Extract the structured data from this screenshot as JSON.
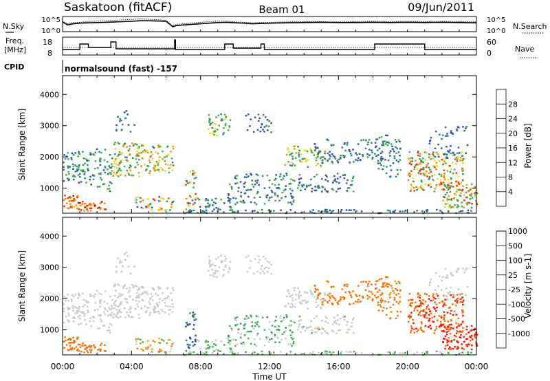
{
  "header": {
    "station": "Saskatoon (fitACF)",
    "beam": "Beam 01",
    "date": "09/Jun/2011"
  },
  "noise_panel": {
    "left_label": "N.Sky",
    "right_label": "N.Search",
    "left_ticks": [
      "10^5",
      "10^0"
    ],
    "right_ticks": [
      "10^5",
      "10^0"
    ]
  },
  "freq_panel": {
    "left_label_line1": "Freq.",
    "left_label_line2": "[MHz]",
    "right_label": "Nave",
    "left_ticks": [
      18,
      8
    ],
    "right_ticks": [
      60,
      0
    ]
  },
  "cpid": {
    "label": "CPID",
    "text": "normalsound (fast) -157"
  },
  "chart_data": [
    {
      "type": "line",
      "panel": "noise",
      "x_unit": "hours UT",
      "y_scale": "log",
      "series": [
        {
          "style": "solid",
          "x": [
            0,
            0.3,
            0.6,
            1.0,
            1.5,
            2.0,
            2.5,
            3.0,
            3.5,
            4.0,
            4.5,
            5.0,
            5.5,
            6.0,
            6.4,
            6.6,
            7.0,
            7.5,
            8.0,
            8.5,
            9.0,
            9.5,
            10.0,
            10.5,
            11.0,
            11.5,
            12.0,
            13.0,
            14.0,
            15.0,
            16.0,
            17.0,
            18.0,
            19.0,
            20.0,
            21.0,
            22.0,
            23.0,
            24.0
          ],
          "y": [
            3.2,
            2.2,
            2.6,
            2.8,
            2.9,
            3.0,
            3.1,
            3.2,
            3.3,
            3.4,
            3.6,
            3.6,
            3.5,
            3.4,
            1.6,
            2.0,
            2.2,
            2.4,
            2.6,
            2.8,
            3.0,
            3.1,
            2.9,
            2.8,
            2.6,
            2.7,
            2.8,
            2.9,
            3.0,
            3.1,
            3.0,
            3.0,
            3.1,
            3.0,
            3.1,
            3.0,
            3.1,
            3.0,
            2.9
          ]
        },
        {
          "style": "dotted",
          "x": [
            0,
            0.3,
            0.6,
            1.0,
            1.5,
            2.0,
            2.5,
            3.0,
            3.5,
            4.0,
            4.5,
            5.0,
            5.5,
            6.0,
            6.4,
            6.6,
            7.0,
            7.5,
            8.0,
            8.5,
            9.0,
            9.5,
            10.0,
            10.5,
            11.0,
            11.5,
            12.0,
            13.0,
            14.0,
            15.0,
            16.0,
            17.0,
            18.0,
            19.0,
            20.0,
            21.0,
            22.0,
            23.0,
            24.0
          ],
          "y": [
            3.5,
            2.6,
            3.0,
            3.1,
            3.3,
            3.5,
            3.6,
            3.7,
            3.9,
            4.0,
            4.2,
            4.1,
            3.9,
            3.7,
            1.9,
            2.4,
            2.6,
            2.8,
            3.1,
            3.3,
            3.5,
            3.5,
            3.2,
            3.1,
            2.9,
            3.0,
            3.1,
            3.2,
            3.3,
            3.3,
            3.2,
            3.3,
            3.4,
            3.3,
            3.4,
            3.3,
            3.4,
            3.3,
            3.2
          ]
        }
      ]
    },
    {
      "type": "line",
      "panel": "frequency",
      "x_unit": "hours UT",
      "ylim": [
        8,
        18
      ],
      "series": [
        {
          "name": "Freq.",
          "style": "solid",
          "step_x": [
            0,
            1.0,
            1.5,
            2.8,
            3.1,
            6.5,
            6.55,
            9.4,
            9.9,
            11.5,
            11.7,
            18.1,
            21.0,
            24.0
          ],
          "step_y": [
            10.5,
            14.5,
            12.0,
            16.0,
            11.0,
            17.5,
            10.5,
            14.5,
            11.5,
            14.5,
            10.5,
            14.5,
            10.5,
            10.5
          ]
        },
        {
          "name": "Nave",
          "style": "dotted",
          "step_x": [
            0,
            24.0
          ],
          "step_y": [
            12.0,
            12.0
          ]
        }
      ]
    },
    {
      "type": "heatmap",
      "panel": "power",
      "ylabel": "Slant Range [km]",
      "yticks": [
        1000,
        2000,
        3000,
        4000
      ],
      "ylim": [
        200,
        4600
      ],
      "colorbar": {
        "label": "Power [dB]",
        "ticks": [
          4,
          8,
          12,
          16,
          20,
          24,
          28
        ],
        "range": [
          0,
          32
        ]
      }
    },
    {
      "type": "heatmap",
      "panel": "velocity",
      "ylabel": "Slant Range [km]",
      "yticks": [
        1000,
        2000,
        3000,
        4000
      ],
      "ylim": [
        200,
        4600
      ],
      "colorbar": {
        "label": "Velocity [m s-1]",
        "ticks": [
          1000,
          500,
          100,
          25,
          -25,
          -100,
          -500,
          -1000
        ]
      }
    }
  ],
  "x_axis": {
    "title": "Time UT",
    "ticks": [
      "00:00",
      "04:00",
      "08:00",
      "12:00",
      "16:00",
      "20:00",
      "00:00"
    ]
  },
  "colors": {
    "power_scale": [
      "#0000ff",
      "#2b4fb8",
      "#2e8a62",
      "#3fb34a",
      "#f2d51e",
      "#ff8c00",
      "#ff3000",
      "#cc0000"
    ],
    "velocity_scale": [
      "#1e3fb4",
      "#2e8a62",
      "#3fb34a",
      "#c9c9c9",
      "#c9c9c9",
      "#f5a000",
      "#ff7000",
      "#ff1500"
    ]
  }
}
